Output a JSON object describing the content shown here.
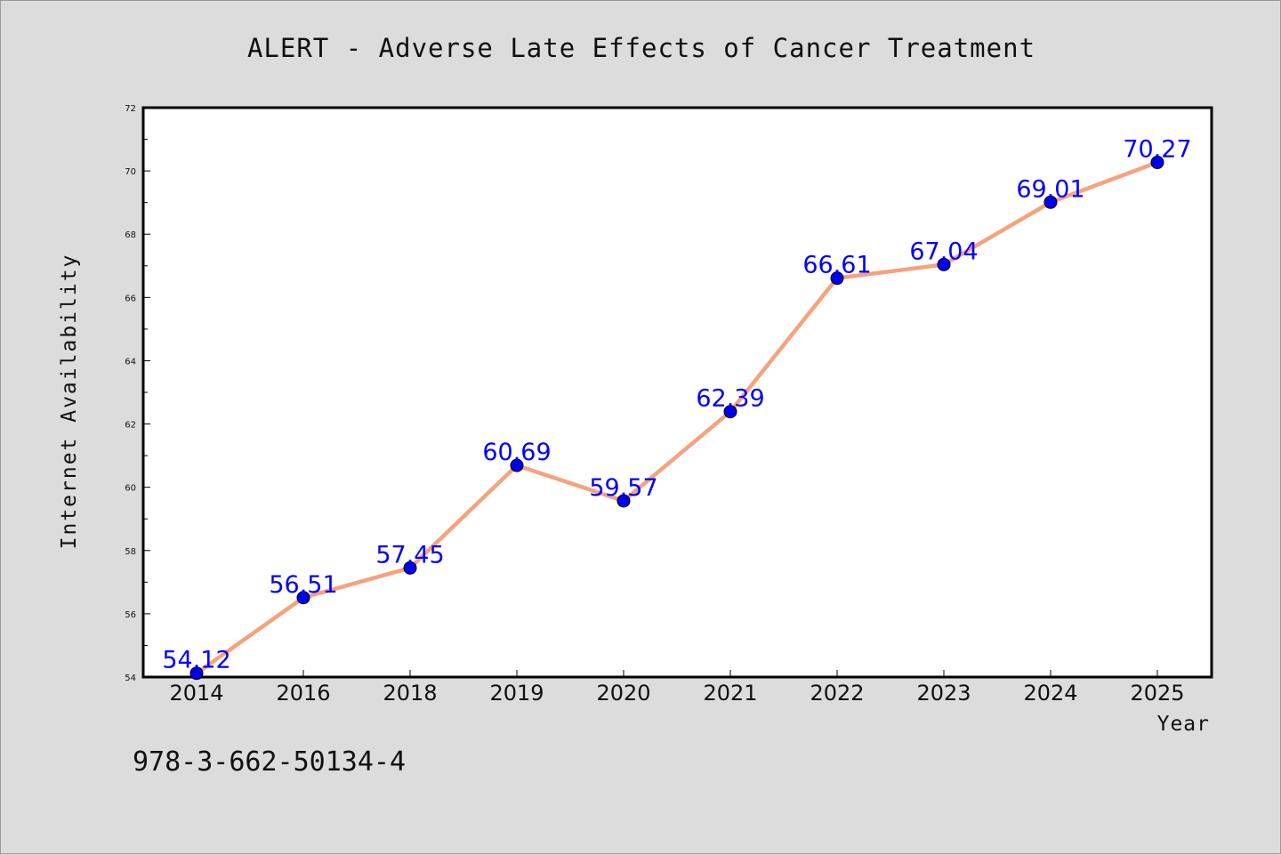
{
  "chart_data": {
    "type": "line",
    "title": "ALERT - Adverse Late Effects of Cancer Treatment",
    "xlabel": "Year",
    "ylabel": "Internet Availability",
    "categories": [
      "2014",
      "2016",
      "2018",
      "2019",
      "2020",
      "2021",
      "2022",
      "2023",
      "2024",
      "2025"
    ],
    "series": [
      {
        "values": [
          54.12,
          56.51,
          57.45,
          60.69,
          59.57,
          62.39,
          66.61,
          67.04,
          69.01,
          70.27
        ],
        "labels": [
          "54.12",
          "56.51",
          "57.45",
          "60.69",
          "59.57",
          "62.39",
          "66.61",
          "67.04",
          "69.01",
          "70.27"
        ],
        "line_color": "#f5a27f",
        "marker_color": "#0000ee",
        "label_color": "#0000ff"
      }
    ],
    "ylim": [
      54,
      72
    ],
    "yticks": [
      "54",
      "56",
      "58",
      "60",
      "62",
      "64",
      "66",
      "68",
      "70",
      "72"
    ],
    "grid": false,
    "legend": "none"
  },
  "footer": {
    "isbn": "978-3-662-50134-4"
  }
}
